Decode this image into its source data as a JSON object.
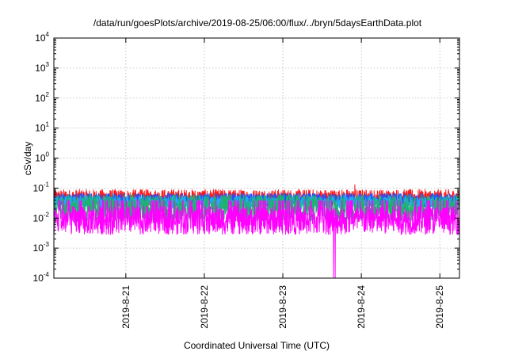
{
  "chart_data": {
    "type": "line",
    "title": "/data/run/goesPlots/archive/2019-08-25/06:00/flux/../bryn/5daysEarthData.plot",
    "xlabel": "Coordinated Universal Time (UTC)",
    "ylabel": "cSv/day",
    "yscale": "log",
    "ylim": [
      0.0001,
      10000
    ],
    "xlim": [
      "2019-08-20T02:00",
      "2019-08-25T06:00"
    ],
    "grid": true,
    "y_ticks": [
      {
        "value": 0.0001,
        "base": "10",
        "exp": "-4"
      },
      {
        "value": 0.001,
        "base": "10",
        "exp": "-3"
      },
      {
        "value": 0.01,
        "base": "10",
        "exp": "-2"
      },
      {
        "value": 0.1,
        "base": "10",
        "exp": "-1"
      },
      {
        "value": 1,
        "base": "10",
        "exp": "0"
      },
      {
        "value": 10,
        "base": "10",
        "exp": "1"
      },
      {
        "value": 100,
        "base": "10",
        "exp": "2"
      },
      {
        "value": 1000,
        "base": "10",
        "exp": "3"
      },
      {
        "value": 10000,
        "base": "10",
        "exp": "4"
      }
    ],
    "x_ticks": [
      {
        "value": "2019-08-21T00:00",
        "label": "2019-8-21"
      },
      {
        "value": "2019-08-22T00:00",
        "label": "2019-8-22"
      },
      {
        "value": "2019-08-23T00:00",
        "label": "2019-8-23"
      },
      {
        "value": "2019-08-24T00:00",
        "label": "2019-8-24"
      },
      {
        "value": "2019-08-25T00:00",
        "label": "2019-8-25"
      }
    ],
    "series": [
      {
        "color": "#ff1a1a",
        "base": 0.048,
        "spread": 0.55,
        "spikes": [
          {
            "at": "2019-08-23T22:00",
            "value": 0.13
          }
        ]
      },
      {
        "color": "#1f4fff",
        "base": 0.04,
        "spread": 0.45,
        "spikes": []
      },
      {
        "color": "#22aaff",
        "base": 0.033,
        "spread": 0.45,
        "spikes": []
      },
      {
        "color": "#20b070",
        "base": 0.022,
        "spread": 0.9,
        "spikes": []
      },
      {
        "color": "#ff00ff",
        "base": 0.0085,
        "spread": 0.95,
        "spikes": [
          {
            "at": "2019-08-23T15:30",
            "value": 0.0001
          },
          {
            "at": "2019-08-23T16:00",
            "value": 0.0001
          }
        ]
      }
    ]
  }
}
